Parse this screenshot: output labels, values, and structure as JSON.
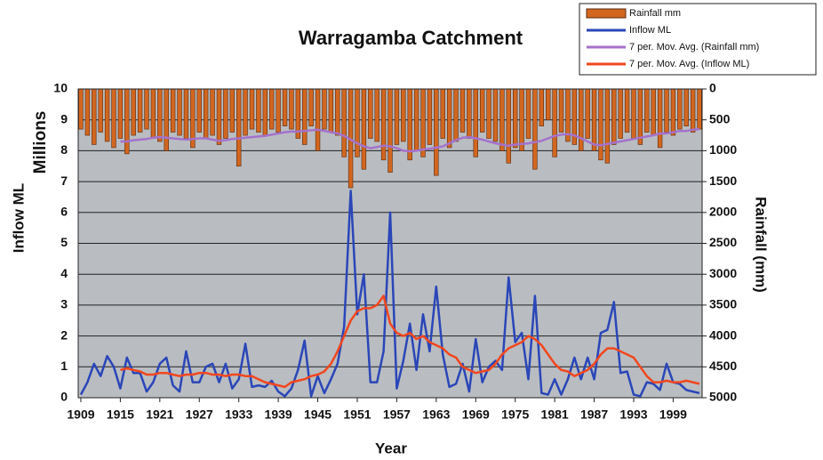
{
  "chart_data": {
    "type": "combo",
    "title": "Warragamba Catchment",
    "y_label": "Inflow ML",
    "y_unit_label": "Millions",
    "y2_label": "Rainfall (mm)",
    "x_label": "Year",
    "x": [
      1909,
      1910,
      1911,
      1912,
      1913,
      1914,
      1915,
      1916,
      1917,
      1918,
      1919,
      1920,
      1921,
      1922,
      1923,
      1924,
      1925,
      1926,
      1927,
      1928,
      1929,
      1930,
      1931,
      1932,
      1933,
      1934,
      1935,
      1936,
      1937,
      1938,
      1939,
      1940,
      1941,
      1942,
      1943,
      1944,
      1945,
      1946,
      1947,
      1948,
      1949,
      1950,
      1951,
      1952,
      1953,
      1954,
      1955,
      1956,
      1957,
      1958,
      1959,
      1960,
      1961,
      1962,
      1963,
      1964,
      1965,
      1966,
      1967,
      1968,
      1969,
      1970,
      1971,
      1972,
      1973,
      1974,
      1975,
      1976,
      1977,
      1978,
      1979,
      1980,
      1981,
      1982,
      1983,
      1984,
      1985,
      1986,
      1987,
      1988,
      1989,
      1990,
      1991,
      1992,
      1993,
      1994,
      1995,
      1996,
      1997,
      1998,
      1999,
      2000,
      2001,
      2002,
      2003
    ],
    "xlim": [
      1908.6,
      2003.4
    ],
    "xticks": [
      1909,
      1915,
      1921,
      1927,
      1933,
      1939,
      1945,
      1951,
      1957,
      1963,
      1969,
      1975,
      1981,
      1987,
      1993,
      1999
    ],
    "ylim": [
      0,
      10
    ],
    "yticks": [
      0,
      1,
      2,
      3,
      4,
      5,
      6,
      7,
      8,
      9,
      10
    ],
    "y2lim": [
      0,
      5000
    ],
    "y2_inverted": true,
    "y2ticks": [
      0,
      500,
      1000,
      1500,
      2000,
      2500,
      3000,
      3500,
      4000,
      4500,
      5000
    ],
    "grid": true,
    "background": "#b9bdc1",
    "legend": "top-right",
    "series": [
      {
        "name": "Rainfall mm",
        "type": "bar",
        "axis": "y2",
        "color": "#d2661f",
        "values": [
          650,
          750,
          900,
          700,
          850,
          950,
          800,
          1050,
          750,
          700,
          650,
          800,
          850,
          1000,
          700,
          750,
          800,
          950,
          700,
          800,
          750,
          900,
          800,
          700,
          1250,
          750,
          650,
          700,
          750,
          650,
          700,
          600,
          650,
          800,
          900,
          600,
          1000,
          650,
          700,
          750,
          1100,
          1600,
          1100,
          1300,
          800,
          850,
          1150,
          1350,
          900,
          850,
          1150,
          1000,
          1100,
          900,
          1400,
          800,
          950,
          850,
          700,
          800,
          1100,
          700,
          800,
          850,
          1000,
          1200,
          950,
          1000,
          800,
          1300,
          600,
          500,
          1100,
          700,
          850,
          900,
          1000,
          800,
          1000,
          1150,
          1200,
          900,
          800,
          700,
          800,
          900,
          700,
          750,
          950,
          700,
          750,
          650,
          600,
          700,
          650
        ]
      },
      {
        "name": "Inflow ML",
        "type": "line",
        "color": "#2a46b8",
        "values": [
          0.1,
          0.5,
          1.1,
          0.7,
          1.35,
          1.0,
          0.3,
          1.3,
          0.8,
          0.8,
          0.2,
          0.5,
          1.1,
          1.3,
          0.4,
          0.2,
          1.5,
          0.5,
          0.5,
          1.0,
          1.1,
          0.5,
          1.1,
          0.3,
          0.6,
          1.75,
          0.35,
          0.4,
          0.35,
          0.55,
          0.2,
          0.05,
          0.3,
          0.9,
          1.85,
          0.05,
          0.7,
          0.15,
          0.6,
          1.1,
          2.3,
          6.7,
          2.7,
          4.0,
          0.5,
          0.5,
          1.5,
          6.0,
          0.3,
          1.2,
          2.4,
          0.9,
          2.7,
          1.5,
          3.6,
          1.4,
          0.35,
          0.45,
          1.1,
          0.2,
          1.9,
          0.5,
          1.0,
          1.2,
          0.9,
          3.9,
          1.8,
          2.1,
          0.6,
          3.3,
          0.15,
          0.1,
          0.6,
          0.1,
          0.6,
          1.3,
          0.6,
          1.3,
          0.6,
          2.1,
          2.2,
          3.1,
          0.8,
          0.85,
          0.1,
          0.05,
          0.5,
          0.45,
          0.25,
          1.1,
          0.5,
          0.45,
          0.25,
          0.2,
          0.15
        ]
      },
      {
        "name": "7 per. Mov. Avg. (Rainfall mm)",
        "type": "line",
        "axis": "y2",
        "color": "#a472cc",
        "values": [
          null,
          null,
          null,
          null,
          null,
          null,
          850,
          850,
          830,
          820,
          810,
          790,
          780,
          790,
          800,
          810,
          820,
          810,
          800,
          800,
          820,
          840,
          830,
          810,
          800,
          790,
          780,
          770,
          760,
          740,
          720,
          700,
          690,
          690,
          680,
          670,
          660,
          680,
          700,
          720,
          760,
          820,
          880,
          930,
          960,
          940,
          920,
          930,
          960,
          1000,
          1010,
          1000,
          980,
          970,
          950,
          930,
          880,
          830,
          790,
          780,
          800,
          820,
          850,
          880,
          900,
          920,
          900,
          890,
          880,
          860,
          840,
          800,
          760,
          740,
          730,
          750,
          800,
          850,
          900,
          910,
          890,
          870,
          850,
          830,
          810,
          790,
          770,
          750,
          720,
          720,
          700,
          680,
          680,
          660,
          650
        ]
      },
      {
        "name": "7 per. Mov. Avg. (Inflow ML)",
        "type": "line",
        "color": "#f2461e",
        "values": [
          null,
          null,
          null,
          null,
          null,
          null,
          0.9,
          0.95,
          0.9,
          0.85,
          0.75,
          0.75,
          0.8,
          0.8,
          0.75,
          0.7,
          0.75,
          0.75,
          0.8,
          0.8,
          0.75,
          0.75,
          0.7,
          0.75,
          0.75,
          0.7,
          0.7,
          0.6,
          0.5,
          0.45,
          0.4,
          0.35,
          0.5,
          0.55,
          0.6,
          0.7,
          0.75,
          0.85,
          1.1,
          1.5,
          2.0,
          2.5,
          2.8,
          2.9,
          2.9,
          3.0,
          3.3,
          2.4,
          2.1,
          2.0,
          2.1,
          1.9,
          2.0,
          1.8,
          1.7,
          1.6,
          1.4,
          1.3,
          1.0,
          0.9,
          0.8,
          0.85,
          0.9,
          1.1,
          1.4,
          1.6,
          1.7,
          1.8,
          2.0,
          1.9,
          1.7,
          1.4,
          1.1,
          0.9,
          0.85,
          0.7,
          0.8,
          0.9,
          1.1,
          1.4,
          1.6,
          1.6,
          1.5,
          1.4,
          1.3,
          1.0,
          0.7,
          0.5,
          0.5,
          0.55,
          0.5,
          0.5,
          0.55,
          0.5,
          0.45
        ]
      }
    ]
  }
}
